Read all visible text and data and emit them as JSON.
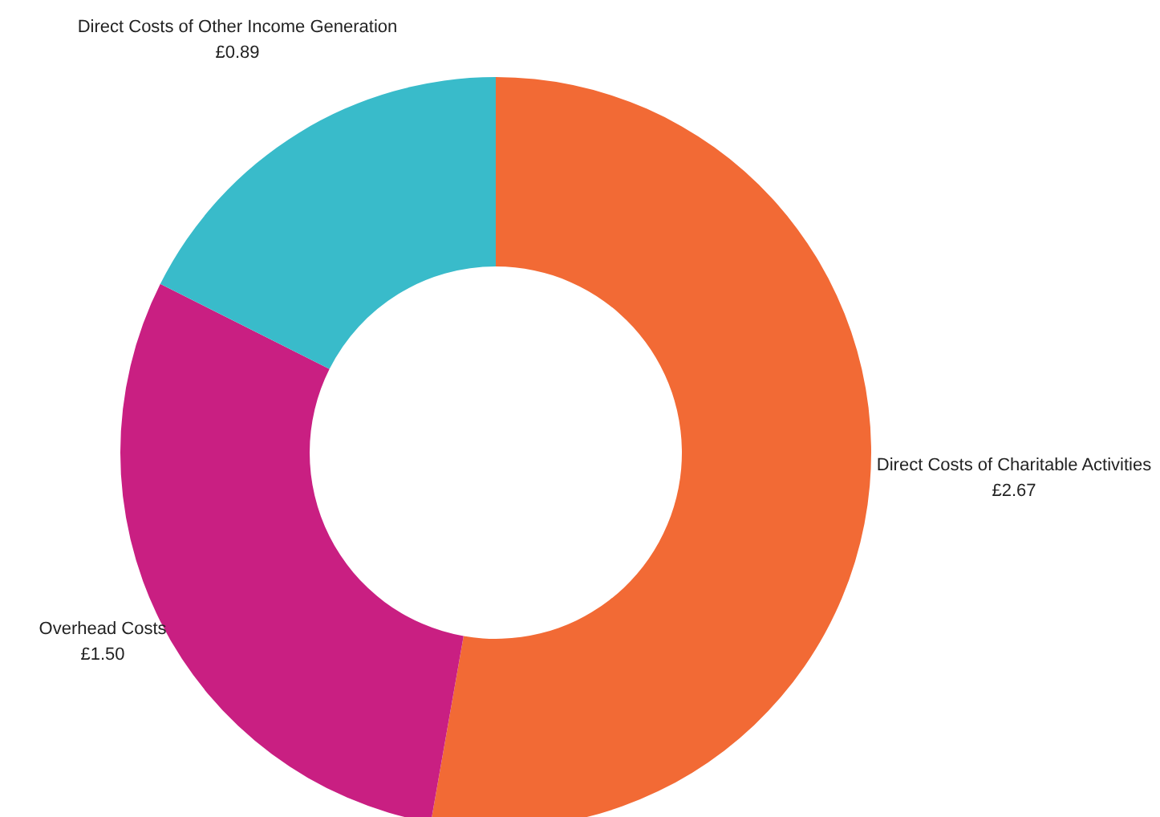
{
  "chart_data": {
    "type": "donut",
    "categories": [
      "Direct Costs of Charitable Activities",
      "Overhead Costs",
      "Direct Costs of Other Income Generation"
    ],
    "values": [
      2.67,
      1.5,
      0.89
    ],
    "colors": [
      "#f26a35",
      "#c91f82",
      "#39bbca"
    ],
    "value_labels": [
      "£2.67",
      "£1.50",
      "£0.89"
    ],
    "legend": false
  }
}
